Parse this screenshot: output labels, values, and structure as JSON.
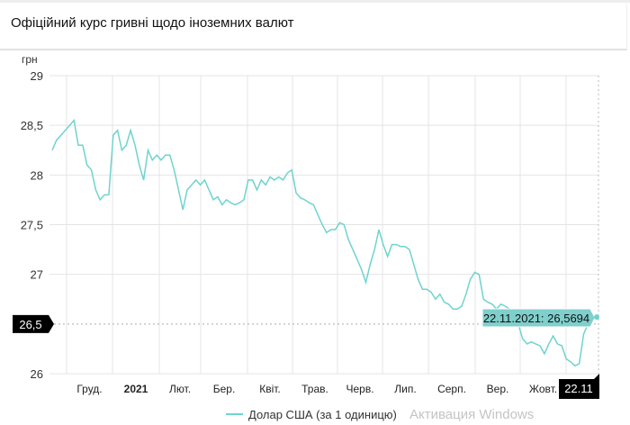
{
  "header": {
    "title": "Офіційний курс гривні щодо іноземних валют"
  },
  "watermark": "Активация Windows",
  "chart_data": {
    "type": "line",
    "ylabel": "грн",
    "ylim": [
      26,
      29
    ],
    "yticks": [
      {
        "value": 29,
        "label": "29"
      },
      {
        "value": 28.5,
        "label": "28,5"
      },
      {
        "value": 28,
        "label": "28"
      },
      {
        "value": 27.5,
        "label": "27,5"
      },
      {
        "value": 27,
        "label": "27"
      },
      {
        "value": 26,
        "label": "26"
      }
    ],
    "xticks": [
      {
        "label": "Груд.",
        "bold": false
      },
      {
        "label": "2021",
        "bold": true
      },
      {
        "label": "Лют.",
        "bold": false
      },
      {
        "label": "Бер.",
        "bold": false
      },
      {
        "label": "Квіт.",
        "bold": false
      },
      {
        "label": "Трав.",
        "bold": false
      },
      {
        "label": "Черв.",
        "bold": false
      },
      {
        "label": "Лип.",
        "bold": false
      },
      {
        "label": "Серп.",
        "bold": false
      },
      {
        "label": "Вер.",
        "bold": false
      },
      {
        "label": "Жовт.",
        "bold": false
      }
    ],
    "cursor": {
      "y_value": 26.5,
      "y_label": "26,5",
      "x_label": "22.11",
      "tooltip": "22.11.2021: 26,5694"
    },
    "series": [
      {
        "name": "Долар США (за 1 одиницю)",
        "color": "#6fd3cf",
        "values": [
          28.25,
          28.35,
          28.4,
          28.45,
          28.5,
          28.55,
          28.3,
          28.3,
          28.1,
          28.05,
          27.85,
          27.75,
          27.8,
          27.8,
          28.4,
          28.45,
          28.25,
          28.3,
          28.45,
          28.3,
          28.1,
          27.95,
          28.25,
          28.15,
          28.2,
          28.15,
          28.2,
          28.2,
          28.05,
          27.85,
          27.65,
          27.85,
          27.9,
          27.95,
          27.9,
          27.95,
          27.85,
          27.75,
          27.78,
          27.7,
          27.75,
          27.72,
          27.7,
          27.72,
          27.75,
          27.95,
          27.95,
          27.85,
          27.95,
          27.9,
          27.98,
          27.95,
          27.98,
          27.95,
          28.02,
          28.05,
          27.82,
          27.77,
          27.75,
          27.72,
          27.7,
          27.6,
          27.5,
          27.42,
          27.45,
          27.45,
          27.52,
          27.5,
          27.35,
          27.25,
          27.15,
          27.05,
          26.92,
          27.1,
          27.25,
          27.45,
          27.3,
          27.18,
          27.3,
          27.3,
          27.28,
          27.28,
          27.25,
          27.1,
          26.95,
          26.85,
          26.85,
          26.82,
          26.75,
          26.8,
          26.72,
          26.7,
          26.65,
          26.65,
          26.68,
          26.8,
          26.95,
          27.02,
          27.0,
          26.75,
          26.72,
          26.7,
          26.65,
          26.7,
          26.68,
          26.65,
          26.55,
          26.5,
          26.35,
          26.3,
          26.32,
          26.3,
          26.28,
          26.2,
          26.3,
          26.38,
          26.3,
          26.28,
          26.15,
          26.12,
          26.08,
          26.1,
          26.4,
          26.5,
          26.57,
          26.5694
        ]
      }
    ]
  }
}
